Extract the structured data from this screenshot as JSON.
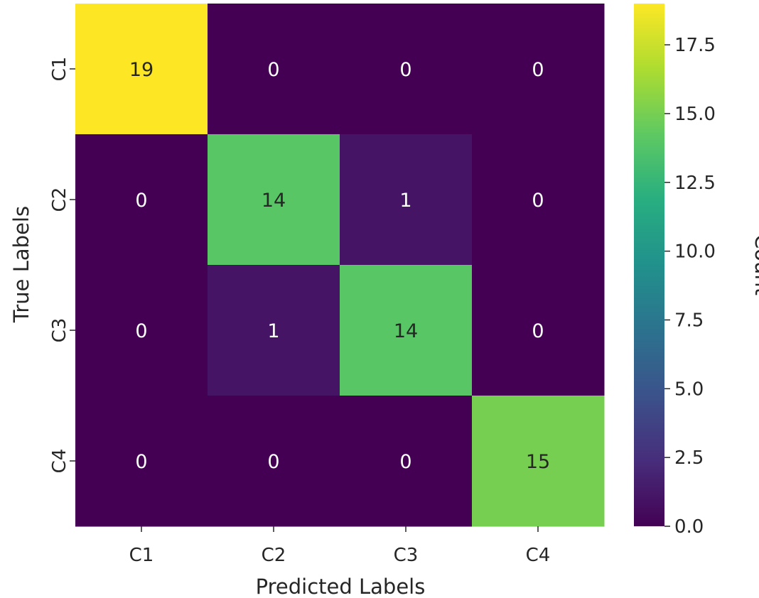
{
  "chart_data": {
    "type": "heatmap",
    "title": "",
    "xlabel": "Predicted Labels",
    "ylabel": "True Labels",
    "x_categories": [
      "C1",
      "C2",
      "C3",
      "C4"
    ],
    "y_categories": [
      "C1",
      "C2",
      "C3",
      "C4"
    ],
    "values": [
      [
        19,
        0,
        0,
        0
      ],
      [
        0,
        14,
        1,
        0
      ],
      [
        0,
        1,
        14,
        0
      ],
      [
        0,
        0,
        0,
        15
      ]
    ],
    "colormap": "viridis",
    "annotations": true,
    "colorbar": {
      "label": "Count",
      "range": [
        0,
        19
      ],
      "ticks": [
        "0.0",
        "2.5",
        "5.0",
        "7.5",
        "10.0",
        "12.5",
        "15.0",
        "17.5"
      ]
    },
    "colors": {
      "annotation_light": "#ffffff",
      "annotation_dark": "#262626"
    }
  }
}
